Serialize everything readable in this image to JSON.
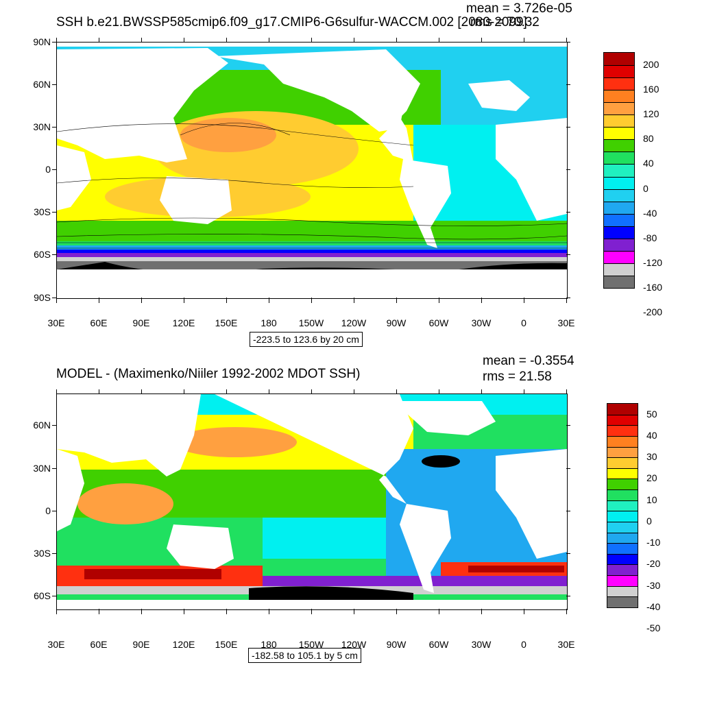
{
  "panel1": {
    "title": "SSH b.e21.BWSSP585cmip6.f09_g17.CMIP6-G6sulfur-WACCM.002 [2080-2099]",
    "mean": "mean = 3.726e-05",
    "rms": "rms = 70.32",
    "range": "-223.5 to 123.6 by 20 cm",
    "lat_labels": [
      "90N",
      "60N",
      "30N",
      "0",
      "30S",
      "60S",
      "90S"
    ],
    "lon_labels": [
      "30E",
      "60E",
      "90E",
      "120E",
      "150E",
      "180",
      "150W",
      "120W",
      "90W",
      "60W",
      "30W",
      "0",
      "30E"
    ],
    "colorbar_labels": [
      "200",
      "160",
      "120",
      "80",
      "40",
      "0",
      "-40",
      "-80",
      "-120",
      "-160",
      "-200"
    ],
    "colorbar_colors": [
      "#b00000",
      "#e00000",
      "#ff3010",
      "#ff8020",
      "#ffa040",
      "#ffcc30",
      "#ffff00",
      "#40d000",
      "#20e060",
      "#20f0c0",
      "#00f0f0",
      "#20d0f0",
      "#20a8f0",
      "#1070ff",
      "#0000ff",
      "#8020d0",
      "#ff00ff",
      "#d0d0d0",
      "#707070"
    ]
  },
  "panel2": {
    "title": "MODEL - (Maximenko/Niiler 1992-2002 MDOT SSH)",
    "mean": "mean = -0.3554",
    "rms": "rms = 21.58",
    "range": "-182.58 to 105.1 by 5 cm",
    "lat_labels": [
      "60N",
      "30N",
      "0",
      "30S",
      "60S"
    ],
    "lon_labels": [
      "30E",
      "60E",
      "90E",
      "120E",
      "150E",
      "180",
      "150W",
      "120W",
      "90W",
      "60W",
      "30W",
      "0",
      "30E"
    ],
    "colorbar_labels": [
      "50",
      "40",
      "30",
      "20",
      "10",
      "0",
      "-10",
      "-20",
      "-30",
      "-40",
      "-50"
    ],
    "colorbar_colors": [
      "#b00000",
      "#e00000",
      "#ff3010",
      "#ff8020",
      "#ffa040",
      "#ffcc30",
      "#ffff00",
      "#40d000",
      "#20e060",
      "#20f0c0",
      "#00f0f0",
      "#20d0f0",
      "#20a8f0",
      "#1070ff",
      "#0000ff",
      "#8020d0",
      "#ff00ff",
      "#d0d0d0",
      "#707070"
    ]
  },
  "palette": {
    "land": "#ffffff",
    "ocean_high": "#ffa040",
    "ocean_mid": "#ffff00",
    "ocean_green": "#40d000",
    "ocean_cyan": "#00f0f0",
    "ocean_blue": "#1070ff",
    "southern_black": "#000000",
    "southern_gray": "#707070"
  }
}
